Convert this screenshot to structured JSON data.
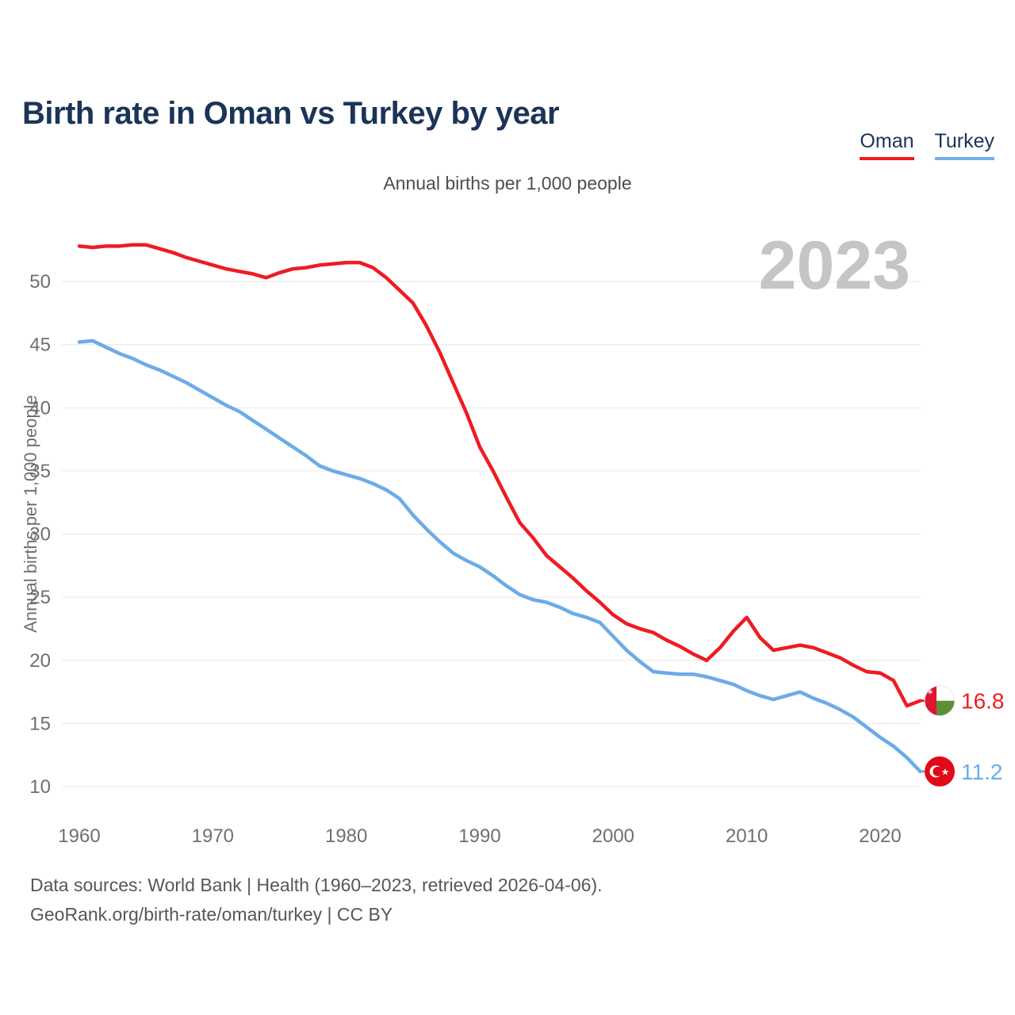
{
  "page": {
    "title": "Birth rate in Oman vs Turkey by year"
  },
  "legend": {
    "items": [
      {
        "label": "Oman",
        "color": "#f01b1b"
      },
      {
        "label": "Turkey",
        "color": "#74b0e8"
      }
    ]
  },
  "footer": {
    "line1": "Data sources: World Bank | Health (1960–2023, retrieved 2026-04-06).",
    "line2": "GeoRank.org/birth-rate/oman/turkey | CC BY"
  },
  "chart_data": {
    "type": "line",
    "title": "Birth rate in Oman vs Turkey by year",
    "subtitle": "Annual births per 1,000 people",
    "ylabel": "Annual births per 1,000 people",
    "watermark": "2023",
    "grid": "horizontal gridlines only",
    "legend_position": "top-right",
    "xlim": [
      1960,
      2023
    ],
    "ylim": [
      10,
      53.5
    ],
    "xticks": [
      1960,
      1970,
      1980,
      1990,
      2000,
      2010,
      2020
    ],
    "yticks": [
      10,
      15,
      20,
      25,
      30,
      35,
      40,
      45,
      50
    ],
    "x": [
      1960,
      1961,
      1962,
      1963,
      1964,
      1965,
      1966,
      1967,
      1968,
      1969,
      1970,
      1971,
      1972,
      1973,
      1974,
      1975,
      1976,
      1977,
      1978,
      1979,
      1980,
      1981,
      1982,
      1983,
      1984,
      1985,
      1986,
      1987,
      1988,
      1989,
      1990,
      1991,
      1992,
      1993,
      1994,
      1995,
      1996,
      1997,
      1998,
      1999,
      2000,
      2001,
      2002,
      2003,
      2004,
      2005,
      2006,
      2007,
      2008,
      2009,
      2010,
      2011,
      2012,
      2013,
      2014,
      2015,
      2016,
      2017,
      2018,
      2019,
      2020,
      2021,
      2022,
      2023
    ],
    "series": [
      {
        "name": "Oman",
        "color": "#ee1c23",
        "end_label": "16.8",
        "flag": "oman",
        "values": [
          52.8,
          52.7,
          52.8,
          52.8,
          52.9,
          52.9,
          52.6,
          52.3,
          51.9,
          51.6,
          51.3,
          51.0,
          50.8,
          50.6,
          50.3,
          50.7,
          51.0,
          51.1,
          51.3,
          51.4,
          51.5,
          51.5,
          51.1,
          50.3,
          49.3,
          48.3,
          46.5,
          44.4,
          42.0,
          39.6,
          36.9,
          35.0,
          32.9,
          30.9,
          29.7,
          28.3,
          27.4,
          26.5,
          25.5,
          24.6,
          23.6,
          22.9,
          22.5,
          22.2,
          21.6,
          21.1,
          20.5,
          20.0,
          21.0,
          22.3,
          23.4,
          21.8,
          20.8,
          21.0,
          21.2,
          21.0,
          20.6,
          20.2,
          19.6,
          19.1,
          19.0,
          18.4,
          16.4,
          16.8
        ]
      },
      {
        "name": "Turkey",
        "color": "#6cabe8",
        "end_label": "11.2",
        "flag": "turkey",
        "values": [
          45.2,
          45.3,
          44.8,
          44.3,
          43.9,
          43.4,
          43.0,
          42.5,
          42.0,
          41.4,
          40.8,
          40.2,
          39.7,
          39.0,
          38.3,
          37.6,
          36.9,
          36.2,
          35.4,
          35.0,
          34.7,
          34.4,
          34.0,
          33.5,
          32.8,
          31.5,
          30.4,
          29.4,
          28.5,
          27.9,
          27.4,
          26.7,
          25.9,
          25.2,
          24.8,
          24.6,
          24.2,
          23.7,
          23.4,
          23.0,
          21.9,
          20.8,
          19.9,
          19.1,
          19.0,
          18.9,
          18.9,
          18.7,
          18.4,
          18.1,
          17.6,
          17.2,
          16.9,
          17.2,
          17.5,
          17.0,
          16.6,
          16.1,
          15.5,
          14.7,
          13.9,
          13.2,
          12.3,
          11.2
        ]
      }
    ]
  }
}
